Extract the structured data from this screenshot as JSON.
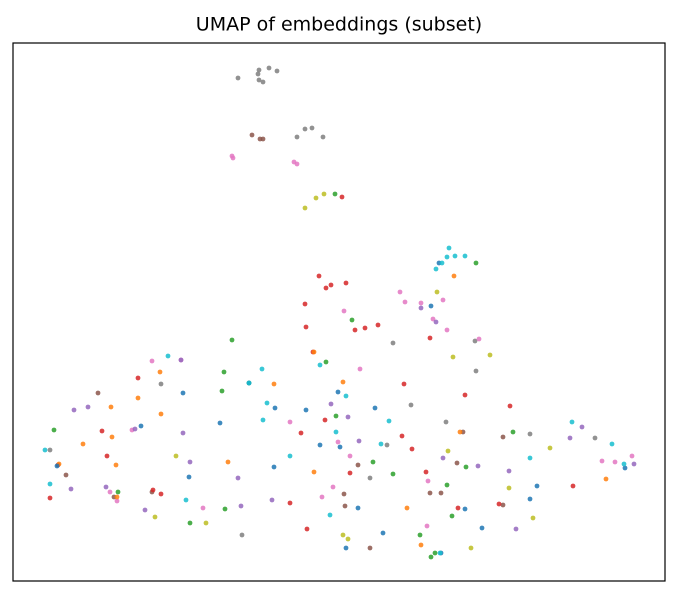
{
  "chart_data": {
    "type": "scatter",
    "title": "UMAP of embeddings (subset)",
    "xlim": [
      13,
      665
    ],
    "ylim": [
      581,
      43
    ],
    "series": [
      {
        "color": "#7f7f7f",
        "x": [
          238,
          259,
          258,
          263,
          259,
          269,
          277,
          297,
          305,
          312,
          323,
          393,
          411,
          446,
          475,
          476,
          161,
          242,
          370,
          595,
          530,
          50,
          387
        ],
        "y": [
          78,
          70,
          74,
          82,
          80,
          68,
          71,
          137,
          129,
          128,
          137,
          343,
          405,
          422,
          341,
          371,
          384,
          535,
          478,
          438,
          434,
          450,
          445
        ]
      },
      {
        "color": "#8c564b",
        "x": [
          252,
          260,
          263,
          98,
          66,
          114,
          344,
          358,
          430,
          441,
          503,
          457,
          345,
          370,
          463,
          503,
          152
        ],
        "y": [
          135,
          139,
          139,
          393,
          475,
          497,
          494,
          465,
          493,
          493,
          437,
          463,
          506,
          548,
          432,
          505,
          492
        ]
      },
      {
        "color": "#e377c2",
        "x": [
          232,
          233,
          294,
          297,
          400,
          405,
          421,
          433,
          443,
          447,
          479,
          344,
          360,
          181,
          152,
          132,
          203,
          333,
          322,
          350,
          427,
          615,
          632,
          602,
          428,
          338,
          290,
          110,
          117
        ],
        "y": [
          156,
          158,
          162,
          164,
          292,
          302,
          303,
          319,
          300,
          330,
          339,
          311,
          369,
          360,
          361,
          430,
          508,
          487,
          497,
          456,
          526,
          462,
          456,
          461,
          481,
          442,
          422,
          492,
          501
        ]
      },
      {
        "color": "#bcbd22",
        "x": [
          305,
          316,
          324,
          437,
          453,
          490,
          176,
          206,
          155,
          343,
          348,
          471,
          448,
          509,
          533,
          550
        ],
        "y": [
          208,
          198,
          194,
          292,
          357,
          355,
          456,
          523,
          517,
          535,
          539,
          548,
          451,
          488,
          518,
          448
        ]
      },
      {
        "color": "#2ca02c",
        "x": [
          335,
          476,
          352,
          326,
          232,
          224,
          222,
          249,
          336,
          373,
          393,
          452,
          420,
          435,
          431,
          513,
          190,
          225,
          118,
          54,
          466,
          447
        ],
        "y": [
          194,
          263,
          320,
          362,
          340,
          372,
          391,
          383,
          416,
          462,
          474,
          516,
          535,
          553,
          557,
          432,
          523,
          509,
          492,
          430,
          467,
          485
        ]
      },
      {
        "color": "#d62728",
        "x": [
          342,
          319,
          326,
          331,
          346,
          305,
          306,
          355,
          365,
          378,
          430,
          313,
          404,
          465,
          510,
          325,
          301,
          412,
          402,
          102,
          107,
          161,
          290,
          307,
          426,
          458,
          499,
          573,
          50,
          153,
          138,
          58,
          350
        ],
        "y": [
          197,
          276,
          288,
          285,
          283,
          304,
          327,
          330,
          328,
          325,
          338,
          352,
          384,
          395,
          406,
          420,
          433,
          449,
          436,
          431,
          456,
          494,
          503,
          529,
          472,
          508,
          504,
          486,
          498,
          490,
          378,
          465,
          473
        ]
      },
      {
        "color": "#ff7f0e",
        "x": [
          454,
          314,
          160,
          274,
          343,
          138,
          111,
          161,
          83,
          112,
          116,
          228,
          460,
          407,
          421,
          606,
          117,
          59,
          314
        ],
        "y": [
          276,
          352,
          372,
          384,
          382,
          398,
          407,
          414,
          444,
          437,
          465,
          462,
          432,
          508,
          545,
          479,
          497,
          464,
          472
        ]
      },
      {
        "color": "#9467bd",
        "x": [
          421,
          436,
          181,
          74,
          88,
          135,
          183,
          71,
          106,
          145,
          190,
          238,
          241,
          272,
          331,
          348,
          443,
          478,
          509,
          570,
          582,
          634,
          516,
          359
        ],
        "y": [
          308,
          322,
          360,
          410,
          407,
          429,
          433,
          489,
          487,
          510,
          462,
          478,
          506,
          500,
          404,
          417,
          458,
          466,
          471,
          438,
          427,
          464,
          529,
          441
        ]
      },
      {
        "color": "#1f77b4",
        "x": [
          439,
          431,
          306,
          338,
          141,
          183,
          249,
          189,
          274,
          320,
          340,
          375,
          358,
          346,
          383,
          465,
          482,
          537,
          530,
          57,
          625,
          275,
          441,
          220
        ],
        "y": [
          263,
          306,
          410,
          392,
          426,
          393,
          383,
          477,
          467,
          445,
          447,
          408,
          508,
          548,
          533,
          509,
          528,
          486,
          499,
          466,
          468,
          408,
          553,
          423
        ]
      },
      {
        "color": "#17becf",
        "x": [
          449,
          442,
          447,
          455,
          465,
          436,
          168,
          262,
          249,
          320,
          267,
          263,
          336,
          346,
          389,
          381,
          290,
          186,
          330,
          440,
          530,
          572,
          612,
          624,
          45,
          50
        ],
        "y": [
          248,
          263,
          257,
          256,
          256,
          269,
          356,
          369,
          383,
          365,
          403,
          420,
          432,
          396,
          421,
          444,
          456,
          500,
          515,
          553,
          458,
          422,
          444,
          464,
          450,
          484
        ]
      }
    ]
  }
}
